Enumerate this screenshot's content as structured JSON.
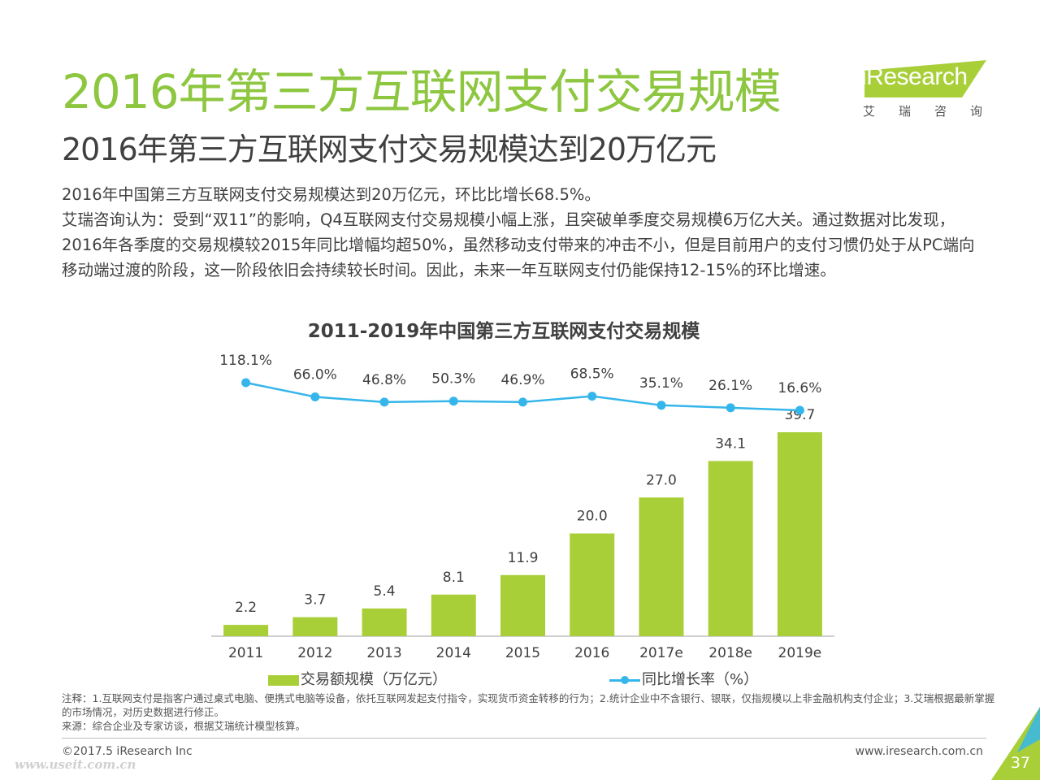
{
  "title": "2016年第三方互联网支付交易规模",
  "subtitle": "2016年第三方互联网支付交易规模达到20万亿元",
  "logo": {
    "brand": "iResearch",
    "brand_cn": "艾瑞咨询"
  },
  "description": [
    "2016年中国第三方互联网支付交易规模达到20万亿元，环比比增长68.5%。",
    "艾瑞咨询认为：受到“双11”的影响，Q4互联网支付交易规模小幅上涨，且突破单季度交易规模6万亿大关。通过数据对比发现，2016年各季度的交易规模较2015年同比增幅均超50%，虽然移动支付带来的冲击不小，但是目前用户的支付习惯仍处于从PC端向移动端过渡的阶段，这一阶段依旧会持续较长时间。因此，未来一年互联网支付仍能保持12-15%的环比增速。"
  ],
  "chart_data": {
    "type": "bar",
    "title": "2011-2019年中国第三方互联网支付交易规模",
    "categories": [
      "2011",
      "2012",
      "2013",
      "2014",
      "2015",
      "2016",
      "2017e",
      "2018e",
      "2019e"
    ],
    "series": [
      {
        "name": "交易额规模（万亿元）",
        "type": "bar",
        "values": [
          2.2,
          3.7,
          5.4,
          8.1,
          11.9,
          20.0,
          27.0,
          34.1,
          39.7
        ],
        "labels": [
          "2.2",
          "3.7",
          "5.4",
          "8.1",
          "11.9",
          "20.0",
          "27.0",
          "34.1",
          "39.7"
        ],
        "color": "#a9cf38"
      },
      {
        "name": "同比增长率（%）",
        "type": "line",
        "values": [
          118.1,
          66.0,
          46.8,
          50.3,
          46.9,
          68.5,
          35.1,
          26.1,
          16.6
        ],
        "labels": [
          "118.1%",
          "66.0%",
          "46.8%",
          "50.3%",
          "46.9%",
          "68.5%",
          "35.1%",
          "26.1%",
          "16.6%"
        ],
        "color": "#35b6ea"
      }
    ],
    "legend_position": "bottom",
    "grid": false
  },
  "notes": [
    "注释：1.互联网支付是指客户通过桌式电脑、便携式电脑等设备，依托互联网发起支付指令，实现货币资金转移的行为；2.统计企业中不含银行、银联，仅指规模以上非金融机构支付企业；3.艾瑞根据最新掌握的市场情况，对历史数据进行修正。",
    "来源：综合企业及专家访谈，根据艾瑞统计模型核算。"
  ],
  "footer": {
    "copyright": "©2017.5 iResearch Inc",
    "website": "www.iresearch.com.cn",
    "page_number": "37",
    "watermark": "www.useit.com.cn"
  }
}
